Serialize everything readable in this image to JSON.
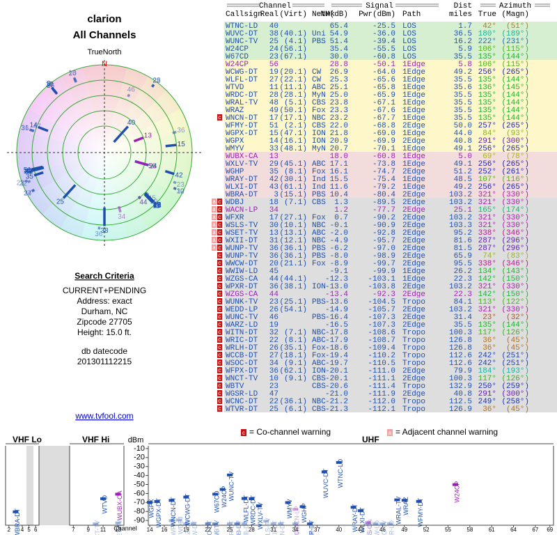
{
  "header": {
    "title": "clarion",
    "subtitle": "All Channels"
  },
  "polar": {
    "north_label": "TrueNorth",
    "north": "N"
  },
  "criteria": {
    "title": "Search Criteria",
    "lines": [
      "CURRENT+PENDING",
      "Address: exact",
      "Durham, NC",
      "Zipcode 27705",
      "Height: 15.0 ft."
    ],
    "datecode_label": "db datecode",
    "datecode": "201301112215"
  },
  "link": "www.tvfool.com",
  "table": {
    "groups": [
      "Channel",
      "Signal",
      "Dist",
      "Azimuth"
    ],
    "columns": [
      "Callsign",
      "Real",
      "(Virt)",
      "Netwk",
      "NM(dB)",
      "Pwr(dBm)",
      "Path",
      "miles",
      "True",
      "(Magn)"
    ],
    "rows": [
      {
        "call": "WTNC-LD",
        "real": "40",
        "nm": "65.4",
        "pwr": "-25.5",
        "path": "LOS",
        "dist": "1.7",
        "az": "42°",
        "magn": "(51°)",
        "color": "#1f4fae",
        "bg": "#d5efd0"
      },
      {
        "call": "WUVC-DT",
        "real": "38",
        "virt": "(40.1)",
        "netwk": "Uni",
        "nm": "54.9",
        "pwr": "-36.0",
        "path": "LOS",
        "dist": "36.5",
        "az": "180°",
        "magn": "(189°)",
        "color": "#1f4fae",
        "bg": "#d5efd0"
      },
      {
        "call": "WUNC-TV",
        "real": "25",
        "virt": "(4.1)",
        "netwk": "PBS",
        "nm": "51.4",
        "pwr": "-39.4",
        "path": "LOS",
        "dist": "16.2",
        "az": "222°",
        "magn": "(231°)",
        "color": "#1f4fae",
        "bg": "#d5efd0"
      },
      {
        "call": "W24CP",
        "real": "24",
        "virt": "(56.1)",
        "nm": "35.4",
        "pwr": "-55.5",
        "path": "LOS",
        "dist": "5.9",
        "az": "106°",
        "magn": "(115°)",
        "color": "#1f4fae",
        "bg": "#d5efd0"
      },
      {
        "call": "W67CD",
        "real": "23",
        "virt": "(67.1)",
        "nm": "30.0",
        "pwr": "-60.8",
        "path": "LOS",
        "dist": "35.5",
        "az": "135°",
        "magn": "(144°)",
        "color": "#1f4fae",
        "bg": "#d5efd0"
      },
      {
        "call": "W24CP",
        "real": "56",
        "nm": "28.8",
        "pwr": "-50.1",
        "path": "1Edge",
        "dist": "5.8",
        "az": "106°",
        "magn": "(115°)",
        "color": "#9b1fb5",
        "bg": "#fdf7c9"
      },
      {
        "call": "WCWG-DT",
        "real": "19",
        "virt": "(20.1)",
        "netwk": "CW",
        "nm": "26.9",
        "pwr": "-64.0",
        "path": "1Edge",
        "dist": "49.2",
        "az": "256°",
        "magn": "(265°)",
        "color": "#1f4fae",
        "bg": "#fdf7c9"
      },
      {
        "call": "WLFL-DT",
        "real": "27",
        "virt": "(22.1)",
        "netwk": "CW",
        "nm": "25.3",
        "pwr": "-65.6",
        "path": "1Edge",
        "dist": "35.5",
        "az": "135°",
        "magn": "(144°)",
        "color": "#1f4fae",
        "bg": "#fdf7c9"
      },
      {
        "call": "WTVD",
        "real": "11",
        "virt": "(11.1)",
        "netwk": "ABC",
        "nm": "25.1",
        "pwr": "-65.8",
        "path": "1Edge",
        "dist": "35.6",
        "az": "136°",
        "magn": "(145°)",
        "color": "#1f4fae",
        "bg": "#fdf7c9"
      },
      {
        "call": "WRDC-DT",
        "real": "28",
        "virt": "(28.1)",
        "netwk": "MyN",
        "nm": "25.0",
        "pwr": "-65.9",
        "path": "1Edge",
        "dist": "35.5",
        "az": "135°",
        "magn": "(144°)",
        "color": "#1f4fae",
        "bg": "#fdf7c9"
      },
      {
        "call": "WRAL-TV",
        "real": "48",
        "virt": "(5.1)",
        "netwk": "CBS",
        "nm": "23.8",
        "pwr": "-67.1",
        "path": "1Edge",
        "dist": "35.5",
        "az": "135°",
        "magn": "(144°)",
        "color": "#1f4fae",
        "bg": "#fdf7c9"
      },
      {
        "call": "WRAZ",
        "real": "49",
        "virt": "(50.1)",
        "netwk": "Fox",
        "nm": "23.3",
        "pwr": "-67.6",
        "path": "1Edge",
        "dist": "35.5",
        "az": "135°",
        "magn": "(144°)",
        "color": "#1f4fae",
        "bg": "#fdf7c9"
      },
      {
        "call": "WNCN-DT",
        "real": "17",
        "virt": "(17.1)",
        "netwk": "NBC",
        "nm": "23.2",
        "pwr": "-67.7",
        "path": "1Edge",
        "dist": "35.5",
        "az": "135°",
        "magn": "(144°)",
        "color": "#1f4fae",
        "bg": "#fdf7c9",
        "flags": [
          "c"
        ]
      },
      {
        "call": "WFMY-DT",
        "real": "51",
        "virt": "(2.1)",
        "netwk": "CBS",
        "nm": "22.0",
        "pwr": "-68.8",
        "path": "2Edge",
        "dist": "50.0",
        "az": "257°",
        "magn": "(265°)",
        "color": "#1f4fae",
        "bg": "#fdf7c9"
      },
      {
        "call": "WGPX-DT",
        "real": "15",
        "virt": "(47.1)",
        "netwk": "ION",
        "nm": "21.8",
        "pwr": "-69.0",
        "path": "1Edge",
        "dist": "44.0",
        "az": "84°",
        "magn": "(93°)",
        "color": "#1f4fae",
        "bg": "#fdf7c9"
      },
      {
        "call": "WGPX",
        "real": "14",
        "virt": "(16.1)",
        "netwk": "ION",
        "nm": "20.9",
        "pwr": "-69.9",
        "path": "2Edge",
        "dist": "40.8",
        "az": "291°",
        "magn": "(300°)",
        "color": "#1f4fae",
        "bg": "#fdf7c9"
      },
      {
        "call": "WMYV",
        "real": "33",
        "virt": "(48.1)",
        "netwk": "MyN",
        "nm": "20.7",
        "pwr": "-70.1",
        "path": "1Edge",
        "dist": "49.1",
        "az": "256°",
        "magn": "(265°)",
        "color": "#1f4fae",
        "bg": "#fdf7c9"
      },
      {
        "call": "WUBX-CA",
        "real": "13",
        "nm": "18.0",
        "pwr": "-60.8",
        "path": "1Edge",
        "dist": "5.0",
        "az": "69°",
        "magn": "(78°)",
        "color": "#9b1fb5",
        "bg": "#f3dcdc"
      },
      {
        "call": "WXLV-TV",
        "real": "29",
        "virt": "(45.1)",
        "netwk": "ABC",
        "nm": "17.1",
        "pwr": "-73.8",
        "path": "1Edge",
        "dist": "49.1",
        "az": "256°",
        "magn": "(265°)",
        "color": "#1f4fae",
        "bg": "#f3dcdc"
      },
      {
        "call": "WGHP",
        "real": "35",
        "virt": "(8.1)",
        "netwk": "Fox",
        "nm": "16.1",
        "pwr": "-74.7",
        "path": "2Edge",
        "dist": "51.2",
        "az": "252°",
        "magn": "(261°)",
        "color": "#1f4fae",
        "bg": "#f3dcdc"
      },
      {
        "call": "WRAY-DT",
        "real": "42",
        "virt": "(30.1)",
        "netwk": "Ind",
        "nm": "15.5",
        "pwr": "-75.4",
        "path": "1Edge",
        "dist": "48.5",
        "az": "107°",
        "magn": "(116°)",
        "color": "#1f4fae",
        "bg": "#f3dcdc"
      },
      {
        "call": "WLXI-DT",
        "real": "43",
        "virt": "(61.1)",
        "netwk": "Ind",
        "nm": "11.6",
        "pwr": "-79.2",
        "path": "1Edge",
        "dist": "49.2",
        "az": "256°",
        "magn": "(265°)",
        "color": "#1f4fae",
        "bg": "#f3dcdc"
      },
      {
        "call": "WBRA-DT",
        "real": "3",
        "virt": "(15.1)",
        "netwk": "PBS",
        "nm": "10.4",
        "pwr": "-80.4",
        "path": "2Edge",
        "dist": "103.2",
        "az": "321°",
        "magn": "(330°)",
        "color": "#1f4fae",
        "bg": "#f3dcdc"
      },
      {
        "call": "WDBJ",
        "real": "18",
        "virt": "(7.1)",
        "netwk": "CBS",
        "nm": "1.3",
        "pwr": "-89.5",
        "path": "2Edge",
        "dist": "103.2",
        "az": "321°",
        "magn": "(330°)",
        "color": "#1f4fae",
        "bg": "#dedede",
        "flags": [
          "a",
          "c"
        ]
      },
      {
        "call": "WACN-LP",
        "real": "34",
        "nm": "1.2",
        "pwr": "-77.7",
        "path": "2Edge",
        "dist": "25.1",
        "az": "165°",
        "magn": "(174°)",
        "color": "#9b1fb5",
        "bg": "#dedede",
        "flags": [
          "a",
          "c"
        ]
      },
      {
        "call": "WFXR",
        "real": "17",
        "virt": "(27.1)",
        "netwk": "Fox",
        "nm": "0.7",
        "pwr": "-90.2",
        "path": "2Edge",
        "dist": "103.2",
        "az": "321°",
        "magn": "(330°)",
        "color": "#1f4fae",
        "bg": "#dedede",
        "flags": [
          "a",
          "c"
        ]
      },
      {
        "call": "WSLS-TV",
        "real": "30",
        "virt": "(10.1)",
        "netwk": "NBC",
        "nm": "-0.1",
        "pwr": "-90.9",
        "path": "2Edge",
        "dist": "103.3",
        "az": "321°",
        "magn": "(330°)",
        "color": "#1f4fae",
        "bg": "#dedede",
        "flags": [
          "a",
          "c"
        ]
      },
      {
        "call": "WSET-TV",
        "real": "13",
        "virt": "(13.1)",
        "netwk": "ABC",
        "nm": "-2.0",
        "pwr": "-92.8",
        "path": "2Edge",
        "dist": "95.2",
        "az": "338°",
        "magn": "(346°)",
        "color": "#1f4fae",
        "bg": "#dedede",
        "flags": [
          "a",
          "c"
        ]
      },
      {
        "call": "WXII-DT",
        "real": "31",
        "virt": "(12.1)",
        "netwk": "NBC",
        "nm": "-4.9",
        "pwr": "-95.7",
        "path": "2Edge",
        "dist": "81.6",
        "az": "287°",
        "magn": "(296°)",
        "color": "#1f4fae",
        "bg": "#dedede",
        "flags": [
          "a",
          "c"
        ]
      },
      {
        "call": "WUNP-TV",
        "real": "36",
        "virt": "(36.1)",
        "netwk": "PBS",
        "nm": "-6.2",
        "pwr": "-97.0",
        "path": "2Edge",
        "dist": "81.5",
        "az": "287°",
        "magn": "(296°)",
        "color": "#1f4fae",
        "bg": "#dedede",
        "flags": [
          "a",
          "c"
        ]
      },
      {
        "call": "WUNP-TV",
        "real": "36",
        "virt": "(36.1)",
        "netwk": "PBS",
        "nm": "-8.0",
        "pwr": "-98.9",
        "path": "2Edge",
        "dist": "65.9",
        "az": "74°",
        "magn": "(83°)",
        "color": "#1f4fae",
        "bg": "#dedede",
        "flags": [
          "c"
        ]
      },
      {
        "call": "WWCW-DT",
        "real": "20",
        "virt": "(21.1)",
        "netwk": "Fox",
        "nm": "-8.9",
        "pwr": "-99.7",
        "path": "2Edge",
        "dist": "95.5",
        "az": "338°",
        "magn": "(346°)",
        "color": "#1f4fae",
        "bg": "#dedede",
        "flags": [
          "c"
        ]
      },
      {
        "call": "WWIW-LD",
        "real": "45",
        "nm": "-9.1",
        "pwr": "-99.9",
        "path": "1Edge",
        "dist": "26.2",
        "az": "134°",
        "magn": "(143°)",
        "color": "#1f4fae",
        "bg": "#dedede",
        "flags": [
          "c"
        ]
      },
      {
        "call": "WZGS-CA",
        "real": "44",
        "virt": "(44.1)",
        "nm": "-12.3",
        "pwr": "-103.1",
        "path": "1Edge",
        "dist": "22.3",
        "az": "142°",
        "magn": "(150°)",
        "color": "#1f4fae",
        "bg": "#dedede",
        "flags": [
          "c"
        ]
      },
      {
        "call": "WPXR-DT",
        "real": "36",
        "virt": "(38.1)",
        "netwk": "ION",
        "nm": "-13.0",
        "pwr": "-103.8",
        "path": "2Edge",
        "dist": "103.2",
        "az": "321°",
        "magn": "(330°)",
        "color": "#1f4fae",
        "bg": "#dedede",
        "flags": [
          "c"
        ]
      },
      {
        "call": "WZGS-CA",
        "real": "44",
        "nm": "-13.4",
        "pwr": "-92.3",
        "path": "2Edge",
        "dist": "22.3",
        "az": "142°",
        "magn": "(150°)",
        "color": "#9b1fb5",
        "bg": "#dedede",
        "flags": [
          "c"
        ]
      },
      {
        "call": "WUNK-TV",
        "real": "23",
        "virt": "(25.1)",
        "netwk": "PBS",
        "nm": "-13.6",
        "pwr": "-104.5",
        "path": "Tropo",
        "dist": "84.1",
        "az": "113°",
        "magn": "(122°)",
        "color": "#1f4fae",
        "bg": "#dedede",
        "flags": [
          "c"
        ]
      },
      {
        "call": "WEDD-LP",
        "real": "26",
        "virt": "(54.1)",
        "nm": "-14.9",
        "pwr": "-105.7",
        "path": "2Edge",
        "dist": "103.2",
        "az": "321°",
        "magn": "(330°)",
        "color": "#1f4fae",
        "bg": "#dedede",
        "flags": [
          "c"
        ]
      },
      {
        "call": "WUNC-TV",
        "real": "46",
        "netwk": "PBS",
        "nm": "-16.4",
        "pwr": "-107.3",
        "path": "2Edge",
        "dist": "31.4",
        "az": "23°",
        "magn": "(32°)",
        "color": "#1f4fae",
        "bg": "#dedede",
        "flags": [
          "c"
        ]
      },
      {
        "call": "WARZ-LD",
        "real": "19",
        "nm": "-16.5",
        "pwr": "-107.3",
        "path": "2Edge",
        "dist": "35.5",
        "az": "135°",
        "magn": "(144°)",
        "color": "#1f4fae",
        "bg": "#dedede",
        "flags": [
          "c"
        ]
      },
      {
        "call": "WITN-DT",
        "real": "32",
        "virt": "(7.1)",
        "netwk": "NBC",
        "nm": "-17.8",
        "pwr": "-108.6",
        "path": "Tropo",
        "dist": "100.3",
        "az": "117°",
        "magn": "(126°)",
        "color": "#1f4fae",
        "bg": "#dedede",
        "flags": [
          "c"
        ]
      },
      {
        "call": "WRIC-DT",
        "real": "22",
        "virt": "(8.1)",
        "netwk": "ABC",
        "nm": "-17.9",
        "pwr": "-108.7",
        "path": "Tropo",
        "dist": "126.8",
        "az": "36°",
        "magn": "(45°)",
        "color": "#1f4fae",
        "bg": "#dedede",
        "flags": [
          "c"
        ]
      },
      {
        "call": "WRLH-DT",
        "real": "26",
        "virt": "(35.1)",
        "netwk": "Fox",
        "nm": "-18.6",
        "pwr": "-109.4",
        "path": "Tropo",
        "dist": "126.8",
        "az": "36°",
        "magn": "(45°)",
        "color": "#1f4fae",
        "bg": "#dedede",
        "flags": [
          "c"
        ]
      },
      {
        "call": "WCCB-DT",
        "real": "27",
        "virt": "(18.1)",
        "netwk": "Fox",
        "nm": "-19.4",
        "pwr": "-110.2",
        "path": "Tropo",
        "dist": "112.6",
        "az": "242°",
        "magn": "(251°)",
        "color": "#1f4fae",
        "bg": "#dedede",
        "flags": [
          "c"
        ]
      },
      {
        "call": "WSOC-DT",
        "real": "34",
        "virt": "(9.1)",
        "netwk": "ABC",
        "nm": "-19.7",
        "pwr": "-110.5",
        "path": "Tropo",
        "dist": "112.6",
        "az": "242°",
        "magn": "(251°)",
        "color": "#1f4fae",
        "bg": "#dedede",
        "flags": [
          "c"
        ]
      },
      {
        "call": "WFPX-DT",
        "real": "36",
        "virt": "(62.1)",
        "netwk": "ION",
        "nm": "-20.1",
        "pwr": "-111.0",
        "path": "2Edge",
        "dist": "79.9",
        "az": "184°",
        "magn": "(193°)",
        "color": "#1f4fae",
        "bg": "#dedede",
        "flags": [
          "c"
        ]
      },
      {
        "call": "WNCT-TV",
        "real": "10",
        "virt": "(9.1)",
        "netwk": "CBS",
        "nm": "-20.1",
        "pwr": "-111.1",
        "path": "2Edge",
        "dist": "100.3",
        "az": "117°",
        "magn": "(126°)",
        "color": "#1f4fae",
        "bg": "#dedede",
        "flags": [
          "c"
        ]
      },
      {
        "call": "WBTV",
        "real": "23",
        "netwk": "CBS",
        "nm": "-20.6",
        "pwr": "-111.4",
        "path": "Tropo",
        "dist": "132.9",
        "az": "250°",
        "magn": "(259°)",
        "color": "#1f4fae",
        "bg": "#dedede",
        "flags": [
          "c"
        ]
      },
      {
        "call": "WGSR-LD",
        "real": "47",
        "nm": "-21.0",
        "pwr": "-111.9",
        "path": "2Edge",
        "dist": "40.8",
        "az": "291°",
        "magn": "(300°)",
        "color": "#1f4fae",
        "bg": "#dedede",
        "flags": [
          "c"
        ]
      },
      {
        "call": "WCNC-DT",
        "real": "22",
        "virt": "(36.1)",
        "netwk": "NBC",
        "nm": "-21.2",
        "pwr": "-112.0",
        "path": "Tropo",
        "dist": "112.5",
        "az": "249°",
        "magn": "(258°)",
        "color": "#1f4fae",
        "bg": "#dedede",
        "flags": [
          "c"
        ]
      },
      {
        "call": "WTVR-DT",
        "real": "25",
        "virt": "(6.1)",
        "netwk": "CBS",
        "nm": "-21.3",
        "pwr": "-112.1",
        "path": "Tropo",
        "dist": "126.9",
        "az": "36°",
        "magn": "(45°)",
        "color": "#1f4fae",
        "bg": "#dedede",
        "flags": [
          "c"
        ]
      }
    ]
  },
  "legend": [
    {
      "icon": "c",
      "text": "= Co-channel warning"
    },
    {
      "icon": "a",
      "text": "= Adjacent channel warning"
    }
  ],
  "spectrum": {
    "ylabel": "dBm",
    "xlabel": "Channel",
    "ylim": [
      0,
      -100
    ],
    "yticks": [
      -10,
      -20,
      -30,
      -40,
      -50,
      -60,
      -70,
      -80,
      -90
    ],
    "sections": [
      {
        "label": "VHF Lo",
        "xlim": [
          1.5,
          6.5
        ],
        "xticks": [
          2,
          4,
          5,
          6
        ]
      },
      {
        "label": "VHF Hi",
        "xlim": [
          6.5,
          13.8
        ],
        "xticks": [
          7,
          9,
          11,
          13
        ]
      },
      {
        "label": "UHF",
        "xlim": [
          13.8,
          69.5
        ],
        "xticks": [
          14,
          16,
          19,
          22,
          25,
          28,
          31,
          34,
          37,
          40,
          43,
          46,
          49,
          52,
          55,
          58,
          61,
          64,
          67,
          69
        ]
      }
    ]
  }
}
